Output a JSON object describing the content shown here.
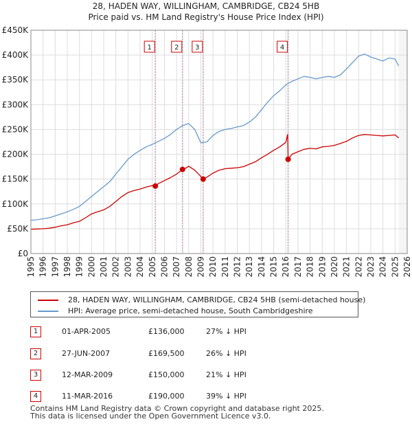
{
  "chart_data": {
    "type": "line",
    "title": "28, HADEN WAY, WILLINGHAM, CAMBRIDGE, CB24 5HB",
    "subtitle": "Price paid vs. HM Land Registry's House Price Index (HPI)",
    "xlabel": "",
    "ylabel": "",
    "xlim": [
      1995,
      2026
    ],
    "ylim": [
      0,
      450000
    ],
    "x_ticks": [
      "1995",
      "1996",
      "1997",
      "1998",
      "1999",
      "2000",
      "2001",
      "2002",
      "2003",
      "2004",
      "2005",
      "2006",
      "2007",
      "2008",
      "2009",
      "2010",
      "2011",
      "2012",
      "2013",
      "2014",
      "2015",
      "2016",
      "2017",
      "2018",
      "2019",
      "2020",
      "2021",
      "2022",
      "2023",
      "2024",
      "2025",
      "2026"
    ],
    "y_ticks": [
      {
        "value": 0,
        "label": "£0"
      },
      {
        "value": 50000,
        "label": "£50K"
      },
      {
        "value": 100000,
        "label": "£100K"
      },
      {
        "value": 150000,
        "label": "£150K"
      },
      {
        "value": 200000,
        "label": "£200K"
      },
      {
        "value": 250000,
        "label": "£250K"
      },
      {
        "value": 300000,
        "label": "£300K"
      },
      {
        "value": 350000,
        "label": "£350K"
      },
      {
        "value": 400000,
        "label": "£400K"
      },
      {
        "value": 450000,
        "label": "£450K"
      }
    ],
    "grid": true,
    "series": [
      {
        "name": "28, HADEN WAY, WILLINGHAM, CAMBRIDGE, CB24 5HB (semi-detached house)",
        "color": "#cc0000",
        "x": [
          1995.0,
          1995.5,
          1996.0,
          1996.5,
          1997.0,
          1997.5,
          1998.0,
          1998.5,
          1999.0,
          1999.5,
          2000.0,
          2000.5,
          2001.0,
          2001.5,
          2002.0,
          2002.5,
          2003.0,
          2003.5,
          2004.0,
          2004.5,
          2005.0,
          2005.25,
          2005.5,
          2006.0,
          2006.5,
          2007.0,
          2007.49,
          2007.75,
          2008.0,
          2008.5,
          2008.9,
          2009.19,
          2009.5,
          2010.0,
          2010.5,
          2011.0,
          2011.5,
          2012.0,
          2012.5,
          2013.0,
          2013.5,
          2014.0,
          2014.5,
          2015.0,
          2015.5,
          2016.0,
          2016.15,
          2016.19,
          2016.5,
          2017.0,
          2017.5,
          2018.0,
          2018.5,
          2019.0,
          2019.5,
          2020.0,
          2020.5,
          2021.0,
          2021.5,
          2022.0,
          2022.5,
          2023.0,
          2023.5,
          2024.0,
          2024.5,
          2025.0,
          2025.3
        ],
        "values": [
          49000,
          49500,
          50000,
          51000,
          53000,
          56000,
          58000,
          62000,
          65000,
          72000,
          80000,
          84000,
          88000,
          95000,
          105000,
          115000,
          123000,
          127000,
          130000,
          134000,
          137000,
          136000,
          141000,
          147000,
          153000,
          160000,
          169500,
          172000,
          176000,
          168000,
          158000,
          150000,
          154000,
          162000,
          168000,
          171000,
          172000,
          173000,
          175000,
          180000,
          185000,
          193000,
          200000,
          208000,
          215000,
          224000,
          240000,
          190000,
          200000,
          205000,
          210000,
          212000,
          211000,
          215000,
          216000,
          218000,
          222000,
          226000,
          233000,
          238000,
          240000,
          239000,
          238000,
          237000,
          238000,
          239000,
          233000
        ]
      },
      {
        "name": "HPI: Average price, semi-detached house, South Cambridgeshire",
        "color": "#6699cc",
        "x": [
          1995.0,
          1995.5,
          1996.0,
          1996.5,
          1997.0,
          1997.5,
          1998.0,
          1998.5,
          1999.0,
          1999.5,
          2000.0,
          2000.5,
          2001.0,
          2001.5,
          2002.0,
          2002.5,
          2003.0,
          2003.5,
          2004.0,
          2004.5,
          2005.0,
          2005.5,
          2006.0,
          2006.5,
          2007.0,
          2007.5,
          2008.0,
          2008.5,
          2009.0,
          2009.5,
          2010.0,
          2010.5,
          2011.0,
          2011.5,
          2012.0,
          2012.5,
          2013.0,
          2013.5,
          2014.0,
          2014.5,
          2015.0,
          2015.5,
          2016.0,
          2016.5,
          2017.0,
          2017.5,
          2018.0,
          2018.5,
          2019.0,
          2019.5,
          2020.0,
          2020.5,
          2021.0,
          2021.5,
          2022.0,
          2022.5,
          2023.0,
          2023.5,
          2024.0,
          2024.5,
          2025.0,
          2025.3
        ],
        "values": [
          67000,
          68000,
          70000,
          72000,
          76000,
          80000,
          84000,
          89000,
          95000,
          105000,
          115000,
          125000,
          135000,
          145000,
          160000,
          175000,
          190000,
          200000,
          208000,
          215000,
          220000,
          226000,
          232000,
          240000,
          250000,
          258000,
          262000,
          250000,
          223000,
          225000,
          238000,
          246000,
          250000,
          252000,
          255000,
          258000,
          265000,
          275000,
          290000,
          305000,
          318000,
          328000,
          340000,
          347000,
          352000,
          357000,
          355000,
          352000,
          355000,
          357000,
          355000,
          360000,
          372000,
          385000,
          398000,
          402000,
          396000,
          392000,
          388000,
          394000,
          392000,
          378000
        ]
      }
    ],
    "sales": [
      {
        "id": "1",
        "x": 2005.25,
        "value": 136000
      },
      {
        "id": "2",
        "x": 2007.49,
        "value": 169500
      },
      {
        "id": "3",
        "x": 2009.19,
        "value": 150000
      },
      {
        "id": "4",
        "x": 2016.19,
        "value": 190000
      }
    ]
  },
  "table": [
    {
      "id": "1",
      "date": "01-APR-2005",
      "price": "£136,000",
      "hpi": "27% ↓ HPI"
    },
    {
      "id": "2",
      "date": "27-JUN-2007",
      "price": "£169,500",
      "hpi": "26% ↓ HPI"
    },
    {
      "id": "3",
      "date": "12-MAR-2009",
      "price": "£150,000",
      "hpi": "21% ↓ HPI"
    },
    {
      "id": "4",
      "date": "11-MAR-2016",
      "price": "£190,000",
      "hpi": "39% ↓ HPI"
    }
  ],
  "footer": {
    "line1": "Contains HM Land Registry data © Crown copyright and database right 2025.",
    "line2": "This data is licensed under the Open Government Licence v3.0."
  },
  "colors": {
    "property": "#cc0000",
    "hpi": "#6699cc",
    "sale_band": "#dde6f5",
    "grid": "#dddddd"
  }
}
